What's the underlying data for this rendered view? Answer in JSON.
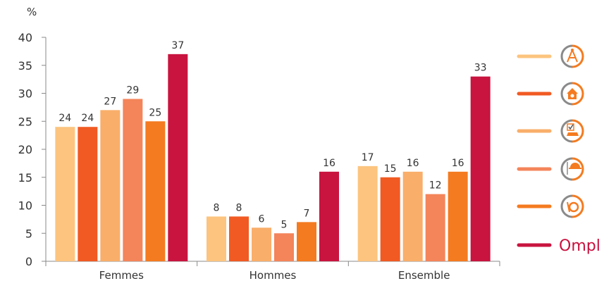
{
  "chart_data": {
    "type": "bar",
    "ylabel": "%",
    "ylim": [
      0,
      40
    ],
    "yticks": [
      0,
      5,
      10,
      15,
      20,
      25,
      30,
      35,
      40
    ],
    "grid": false,
    "legend_position": "right",
    "categories": [
      "Femmes",
      "Hommes",
      "Ensemble"
    ],
    "series": [
      {
        "values": [
          24,
          8,
          17
        ],
        "color": "#fcc47f",
        "icon": "architecture-icon"
      },
      {
        "values": [
          24,
          8,
          15
        ],
        "color": "#f15a22",
        "icon": "house-icon"
      },
      {
        "values": [
          27,
          6,
          16
        ],
        "color": "#f9ae6a",
        "icon": "vehicle-check-icon"
      },
      {
        "values": [
          29,
          5,
          12
        ],
        "color": "#f4845a",
        "icon": "worker-helmet-icon"
      },
      {
        "values": [
          25,
          7,
          16
        ],
        "color": "#f47b20",
        "icon": "hand-coin-icon"
      },
      {
        "values": [
          37,
          16,
          33
        ],
        "color": "#c8143f",
        "legend_text": "Ompl",
        "icon": "ompl-logo"
      }
    ]
  }
}
